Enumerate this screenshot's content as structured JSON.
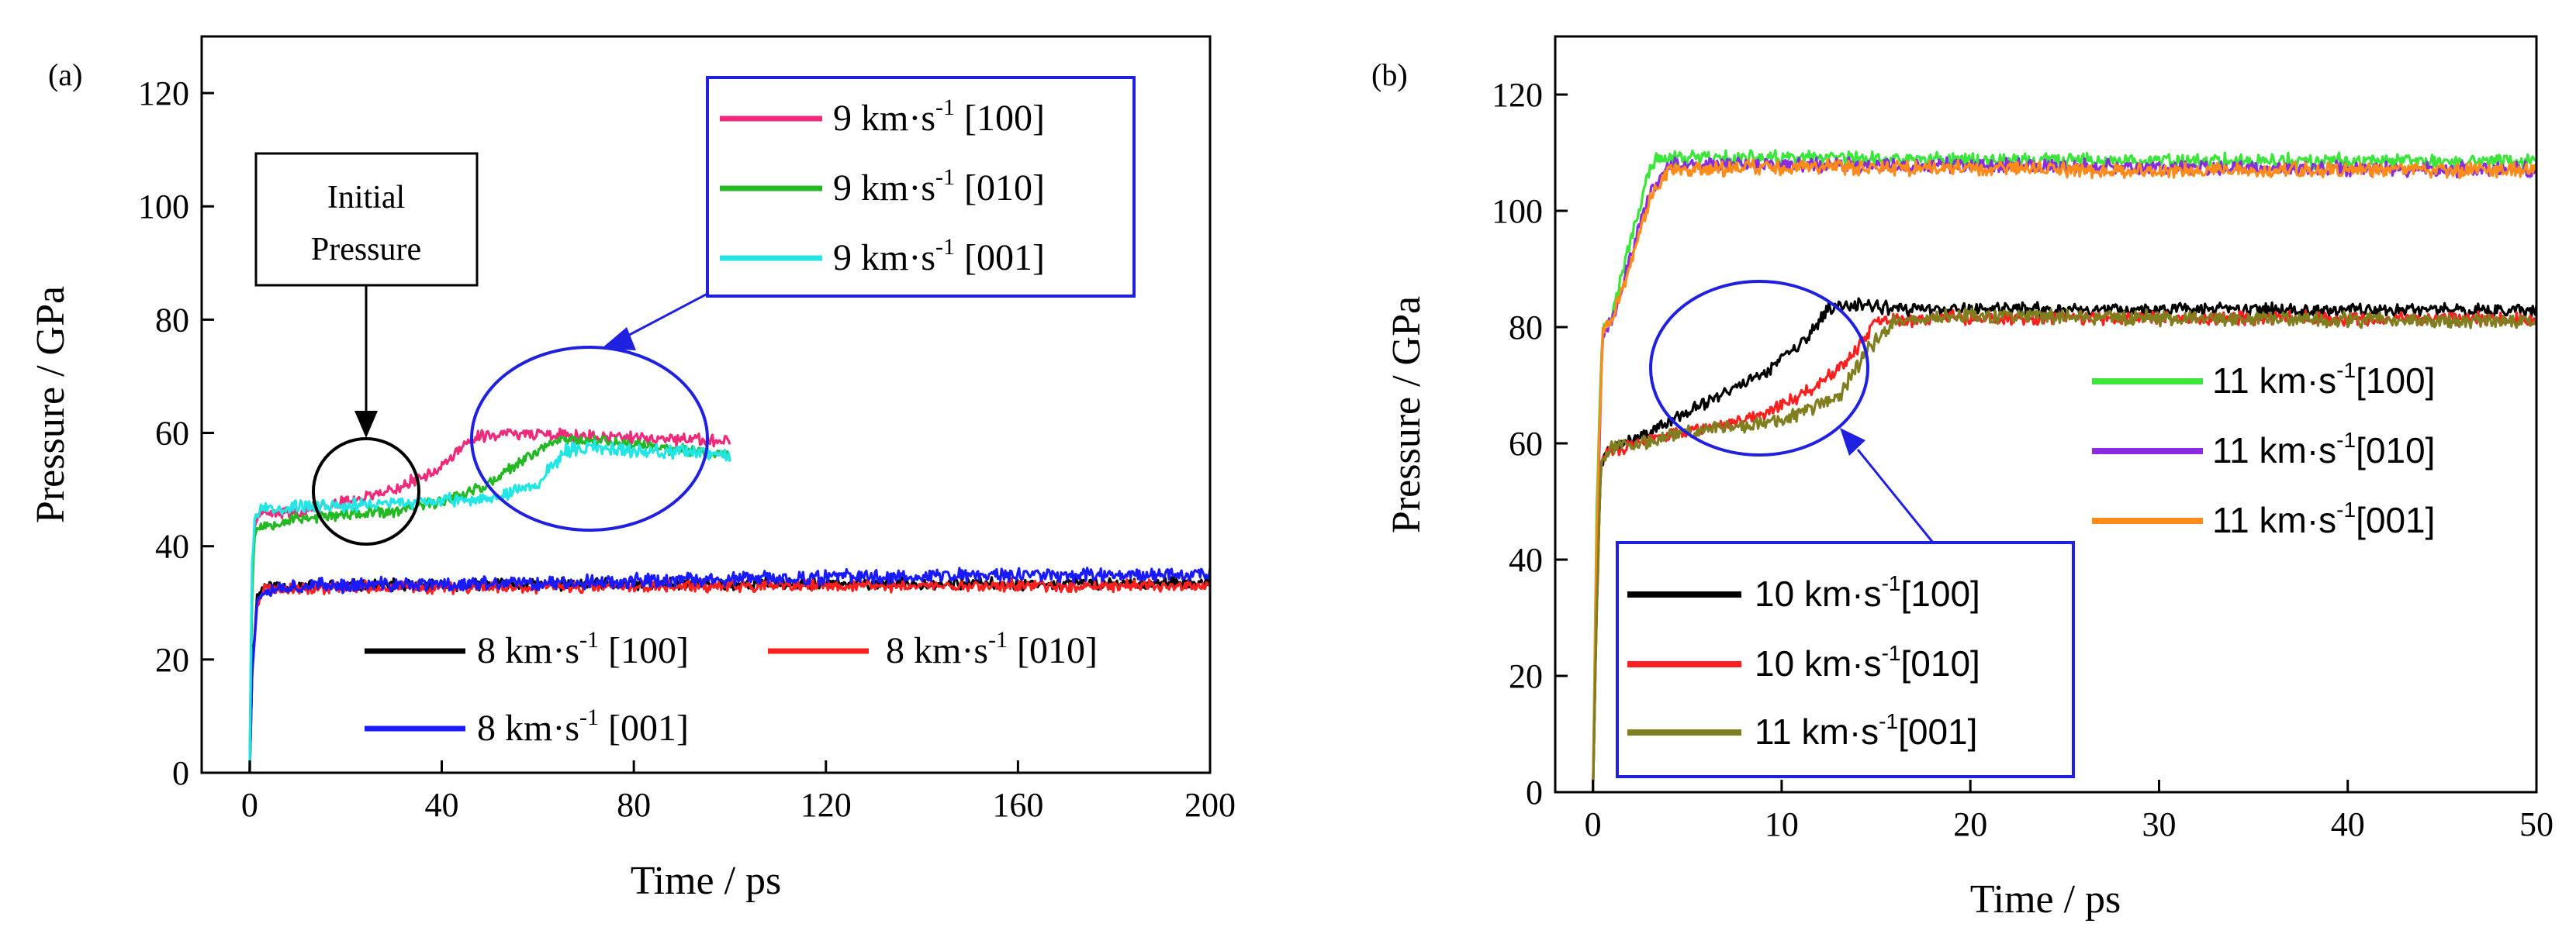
{
  "figure": {
    "panel_a_label": "(a)",
    "panel_b_label": "(b)"
  },
  "colors": {
    "pink": "#ee2a7b",
    "green": "#22b922",
    "cyan": "#22e5e5",
    "black": "#000000",
    "red": "#ff1f1f",
    "blue": "#1a1aff",
    "bright_green": "#39e639",
    "purple": "#8a2be2",
    "orange": "#ff8c1a",
    "olive": "#7f7f20",
    "annotation_blue": "#2020e0"
  },
  "chart_data": [
    {
      "type": "line",
      "panel": "(a)",
      "title": "",
      "xlabel": "Time / ps",
      "ylabel": "Pressure / GPa",
      "xlim": [
        -10,
        200
      ],
      "ylim": [
        0,
        130
      ],
      "xticks": [
        0,
        40,
        80,
        120,
        160,
        200
      ],
      "yticks": [
        0,
        20,
        40,
        60,
        80,
        100,
        120
      ],
      "legend_top": {
        "placement": "top-right",
        "entries": [
          {
            "speed": "9 km·s",
            "exp": "-1",
            "dir": "[100]",
            "color": "#ee2a7b"
          },
          {
            "speed": "9 km·s",
            "exp": "-1",
            "dir": "[010]",
            "color": "#22b922"
          },
          {
            "speed": "9 km·s",
            "exp": "-1",
            "dir": "[001]",
            "color": "#22e5e5"
          }
        ]
      },
      "legend_bottom": {
        "placement": "bottom",
        "entries": [
          {
            "speed": "8 km·s",
            "exp": "-1",
            "dir": "[100]",
            "color": "#000000"
          },
          {
            "speed": "8 km·s",
            "exp": "-1",
            "dir": "[010]",
            "color": "#ff1f1f"
          },
          {
            "speed": "8 km·s",
            "exp": "-1",
            "dir": "[001]",
            "color": "#1a1aff"
          }
        ]
      },
      "annotation": {
        "line1": "Initial",
        "line2": "Pressure"
      },
      "series": [
        {
          "name": "8 km/s [100]",
          "color": "#000000",
          "noise": 0.9,
          "seed": 11,
          "x": [
            0,
            0.5,
            1.5,
            3,
            10,
            60,
            120,
            200
          ],
          "y": [
            0,
            18,
            31,
            33,
            33,
            33.2,
            33.4,
            33.4
          ]
        },
        {
          "name": "8 km/s [010]",
          "color": "#ff1f1f",
          "noise": 0.9,
          "seed": 23,
          "x": [
            0,
            0.5,
            1.5,
            3,
            10,
            60,
            120,
            200
          ],
          "y": [
            0,
            17,
            30,
            32.5,
            32.7,
            32.8,
            33,
            33
          ]
        },
        {
          "name": "8 km/s [001]",
          "color": "#1a1aff",
          "noise": 1.1,
          "seed": 37,
          "x": [
            0,
            0.5,
            1.5,
            3,
            10,
            60,
            120,
            160,
            200
          ],
          "y": [
            0,
            18,
            30,
            32.5,
            33,
            33.5,
            34.5,
            35,
            35
          ]
        },
        {
          "name": "9 km/s [100]",
          "color": "#ee2a7b",
          "noise": 0.9,
          "seed": 41,
          "x": [
            0,
            0.4,
            1,
            2,
            10,
            20,
            30,
            40,
            47,
            55,
            65,
            80,
            100
          ],
          "y": [
            0,
            30,
            44,
            45.5,
            46,
            48,
            50,
            54,
            59.5,
            60,
            59.5,
            59,
            58.5
          ]
        },
        {
          "name": "9 km/s [010]",
          "color": "#22b922",
          "noise": 0.9,
          "seed": 53,
          "x": [
            0,
            0.4,
            1,
            2,
            10,
            30,
            40,
            50,
            60,
            65,
            75,
            90,
            100
          ],
          "y": [
            0,
            30,
            42,
            43.5,
            45,
            46,
            48,
            51,
            57,
            59,
            58.5,
            57,
            56
          ]
        },
        {
          "name": "9 km/s [001]",
          "color": "#22e5e5",
          "noise": 1.0,
          "seed": 67,
          "x": [
            0,
            0.4,
            1,
            2,
            10,
            30,
            50,
            60,
            66,
            72,
            80,
            90,
            100
          ],
          "y": [
            0,
            35,
            45,
            46.5,
            47,
            47.5,
            48.5,
            51,
            57,
            57.5,
            57,
            56.5,
            56
          ]
        }
      ]
    },
    {
      "type": "line",
      "panel": "(b)",
      "title": "",
      "xlabel": "Time / ps",
      "ylabel": "Pressure / GPa",
      "xlim": [
        -2,
        50
      ],
      "ylim": [
        0,
        130
      ],
      "xticks": [
        0,
        10,
        20,
        30,
        40,
        50
      ],
      "yticks": [
        0,
        20,
        40,
        60,
        80,
        100,
        120
      ],
      "legend_right": {
        "placement": "center-right",
        "entries": [
          {
            "speed": "11 km·s",
            "exp": "-1",
            "dir": "[100]",
            "color": "#39e639"
          },
          {
            "speed": "11 km·s",
            "exp": "-1",
            "dir": "[010]",
            "color": "#8a2be2"
          },
          {
            "speed": "11 km·s",
            "exp": "-1",
            "dir": "[001]",
            "color": "#ff8c1a"
          }
        ]
      },
      "legend_bottom": {
        "placement": "bottom-left",
        "entries": [
          {
            "speed": "10 km·s",
            "exp": "-1",
            "dir": "[100]",
            "color": "#000000"
          },
          {
            "speed": "10 km·s",
            "exp": "-1",
            "dir": "[010]",
            "color": "#ff1f1f"
          },
          {
            "speed": "11 km·s",
            "exp": "-1",
            "dir": "[001]",
            "color": "#7f7f20"
          }
        ]
      },
      "series": [
        {
          "name": "10 km/s [100]",
          "color": "#000000",
          "noise": 1.0,
          "seed": 71,
          "x": [
            0,
            0.15,
            0.4,
            0.6,
            1,
            3,
            6,
            9,
            11,
            12.5,
            14,
            16,
            30,
            50
          ],
          "y": [
            0,
            25,
            55,
            58,
            59,
            62,
            67,
            72,
            77,
            83,
            84,
            83,
            83,
            83
          ]
        },
        {
          "name": "10 km/s [010]",
          "color": "#ff1f1f",
          "noise": 1.0,
          "seed": 83,
          "x": [
            0,
            0.15,
            0.4,
            0.6,
            1,
            5,
            9,
            12,
            14,
            15,
            18,
            30,
            50
          ],
          "y": [
            0,
            25,
            55,
            58,
            59,
            62,
            65,
            70,
            76,
            81,
            81.5,
            81.5,
            81.5
          ]
        },
        {
          "name": "11 km/s [100]",
          "color": "#39e639",
          "noise": 1.1,
          "seed": 97,
          "x": [
            0,
            0.2,
            0.5,
            1,
            2,
            3,
            3.5,
            10,
            30,
            50
          ],
          "y": [
            0,
            50,
            80,
            82,
            95,
            107,
            109,
            109,
            108.5,
            108.5
          ]
        },
        {
          "name": "11 km/s [010]",
          "color": "#8a2be2",
          "noise": 1.1,
          "seed": 101,
          "x": [
            0,
            0.2,
            0.5,
            1,
            2,
            3,
            4,
            10,
            30,
            50
          ],
          "y": [
            0,
            40,
            79,
            81,
            92,
            103,
            108,
            108,
            107.5,
            107
          ]
        },
        {
          "name": "11 km/s [001]",
          "color": "#ff8c1a",
          "noise": 1.1,
          "seed": 109,
          "x": [
            0,
            0.2,
            0.5,
            1,
            2,
            3,
            4,
            10,
            30,
            50
          ],
          "y": [
            0,
            45,
            79,
            81,
            91,
            102,
            107,
            107.5,
            107,
            107
          ]
        },
        {
          "name": "11 km/s [001] (olive)",
          "color": "#7f7f20",
          "noise": 1.1,
          "seed": 113,
          "x": [
            0,
            0.15,
            0.4,
            0.6,
            1,
            5,
            10,
            13,
            14.5,
            16,
            20,
            30,
            50
          ],
          "y": [
            0,
            25,
            55,
            58,
            59,
            62,
            64,
            68,
            76,
            81,
            82,
            81.5,
            81
          ]
        }
      ]
    }
  ]
}
